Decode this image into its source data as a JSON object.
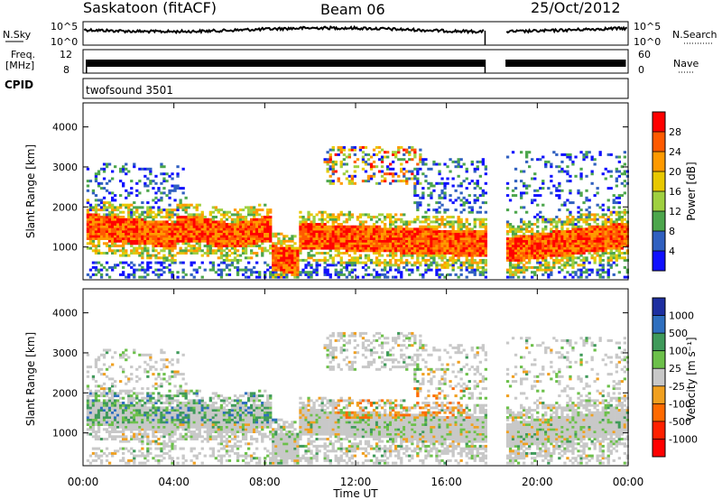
{
  "header": {
    "station": "Saskatoon (fitACF)",
    "beam": "Beam 06",
    "date": "25/Oct/2012"
  },
  "strips": {
    "nsky_label": "N.Sky",
    "nsky_ticks": [
      "10^5",
      "10^0"
    ],
    "nsearch_label": "N.Search",
    "nsearch_ticks": [
      "10^5",
      "10^0"
    ],
    "freq_label_line1": "Freq.",
    "freq_label_line2": "[MHz]",
    "freq_ticks": [
      "12",
      "8"
    ],
    "nave_label": "Nave",
    "nave_ticks": [
      "60",
      "0"
    ],
    "cpid_label": "CPID",
    "cpid_value": "twofsound 3501"
  },
  "chart_data": [
    {
      "type": "heatmap",
      "name": "power",
      "ylabel": "Slant Range [km]",
      "yticks": [
        1000,
        2000,
        3000,
        4000
      ],
      "ylim": [
        180,
        4600
      ],
      "xlim": [
        0,
        24
      ],
      "xticks": [
        0,
        4,
        8,
        12,
        16,
        20,
        24
      ],
      "colorbar": {
        "label": "Power [dB]",
        "ticks": [
          "28",
          "24",
          "20",
          "16",
          "12",
          "8",
          "4"
        ],
        "colors": [
          "#ff0000",
          "#ff5a00",
          "#ff9a00",
          "#e8c800",
          "#9fd040",
          "#4ca64c",
          "#3060c0",
          "#1010ff"
        ]
      },
      "data_gap_hours": [
        17.7,
        18.6
      ],
      "scatter_regions": [
        {
          "t": [
            0.2,
            4.0
          ],
          "r": [
            300,
            1900
          ],
          "dominant": "mixed"
        },
        {
          "t": [
            3.5,
            8.3
          ],
          "r": [
            900,
            1600
          ],
          "dominant": "strong"
        },
        {
          "t": [
            9.5,
            17.7
          ],
          "r": [
            600,
            1700
          ],
          "dominant": "mixed"
        },
        {
          "t": [
            10.5,
            14.5
          ],
          "r": [
            2700,
            3500
          ],
          "dominant": "weak"
        },
        {
          "t": [
            18.6,
            24.0
          ],
          "r": [
            250,
            1500
          ],
          "dominant": "strong"
        }
      ]
    },
    {
      "type": "heatmap",
      "name": "velocity",
      "ylabel": "Slant Range [km]",
      "yticks": [
        1000,
        2000,
        3000,
        4000
      ],
      "ylim": [
        180,
        4600
      ],
      "xlim": [
        0,
        24
      ],
      "xticks": [
        0,
        4,
        8,
        12,
        16,
        20,
        24
      ],
      "xlabel": "Time UT",
      "xtick_labels": [
        "00:00",
        "04:00",
        "08:00",
        "12:00",
        "16:00",
        "20:00",
        "00:00"
      ],
      "colorbar": {
        "label": "Velocity [m s⁻¹]",
        "ticks": [
          "1000",
          "500",
          "100",
          "25",
          "-25",
          "-100",
          "-500",
          "-1000"
        ],
        "colors": [
          "#1e2fa0",
          "#2f6fbf",
          "#3f9a5a",
          "#6cc04a",
          "#c8c8c8",
          "#f0a020",
          "#ff6a00",
          "#ff2000",
          "#ff0000"
        ]
      },
      "data_gap_hours": [
        17.7,
        18.6
      ]
    }
  ]
}
